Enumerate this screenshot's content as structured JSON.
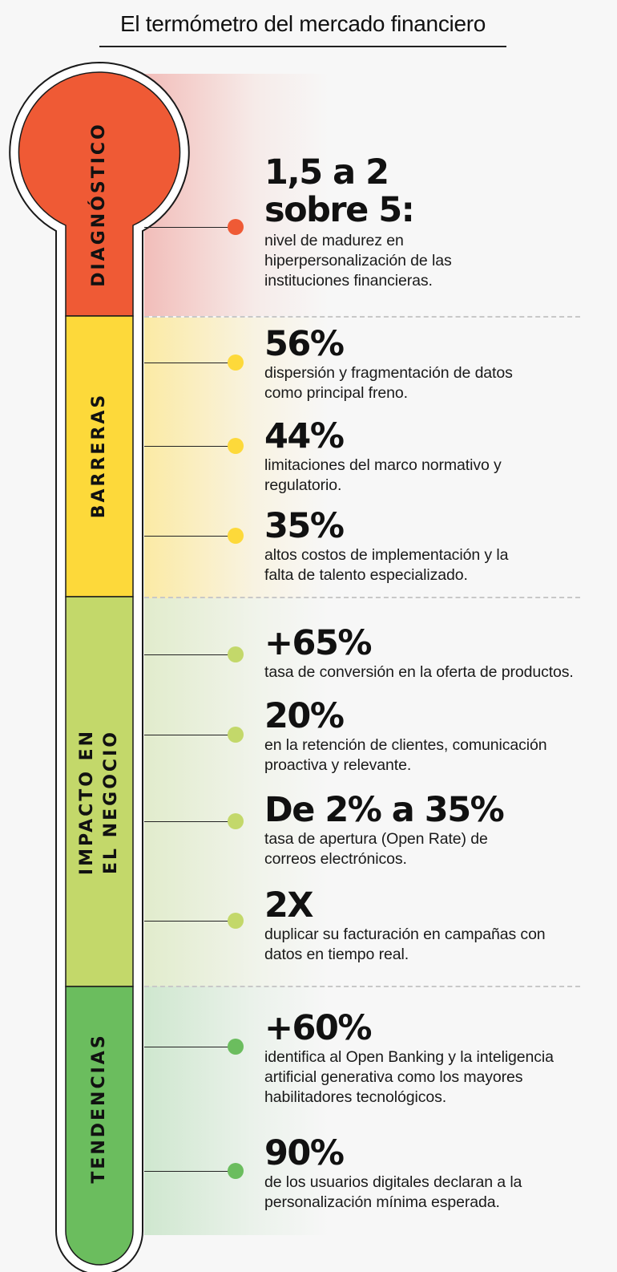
{
  "title": "El termómetro del mercado financiero",
  "colors": {
    "diagnostico": "#ef5a35",
    "barreras": "#fdd93a",
    "impacto": "#c3d86a",
    "tendencias": "#6bbd5e"
  },
  "sections": {
    "diagnostico": {
      "label": "DIAGNÓSTICO",
      "stats": [
        {
          "value_line1": "1,5 a 2",
          "value_line2": "sobre 5:",
          "desc_line1": "nivel de madurez en",
          "desc_line2": "hiperpersonalización de las",
          "desc_line3": "instituciones financieras."
        }
      ]
    },
    "barreras": {
      "label": "BARRERAS",
      "stats": [
        {
          "value": "56%",
          "desc_line1": "dispersión y fragmentación de datos",
          "desc_line2": "como principal freno."
        },
        {
          "value": "44%",
          "desc_line1": "limitaciones del marco normativo y",
          "desc_line2": "regulatorio."
        },
        {
          "value": "35%",
          "desc_line1": "altos costos de implementación y la",
          "desc_line2": "falta de talento especializado."
        }
      ]
    },
    "impacto": {
      "label_line1": "IMPACTO EN",
      "label_line2": "EL NEGOCIO",
      "stats": [
        {
          "value": "+65%",
          "desc_line1": "tasa de conversión en la oferta de productos."
        },
        {
          "value": "20%",
          "desc_line1": "en la retención de clientes, comunicación",
          "desc_line2": "proactiva y relevante."
        },
        {
          "value": "De 2% a 35%",
          "desc_line1": "tasa de apertura (Open Rate) de",
          "desc_line2": "correos electrónicos."
        },
        {
          "value": "2X",
          "desc_line1": "duplicar su facturación en campañas con",
          "desc_line2": "datos en tiempo real."
        }
      ]
    },
    "tendencias": {
      "label": "TENDENCIAS",
      "stats": [
        {
          "value": "+60%",
          "desc_line1": "identifica al Open Banking y la inteligencia",
          "desc_line2": "artificial generativa como los mayores",
          "desc_line3": "habilitadores tecnológicos."
        },
        {
          "value": "90%",
          "desc_line1": "de los usuarios digitales declaran a la",
          "desc_line2": "personalización mínima esperada."
        }
      ]
    }
  }
}
